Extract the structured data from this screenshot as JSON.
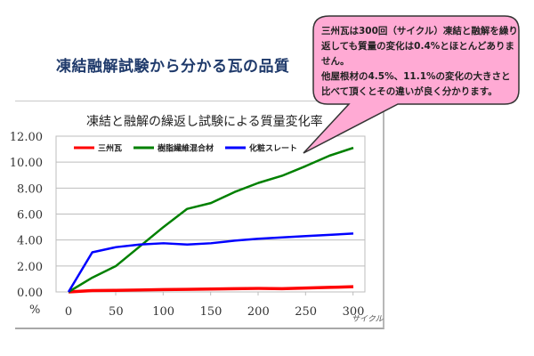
{
  "page": {
    "title": "凍結融解試験から分かる瓦の品質"
  },
  "callout": {
    "text": "三州瓦は300回（サイクル）凍結と融解を繰り返しても質量の変化は0.4%とほとんどありません。\n他屋根材の4.5%、11.1%の変化の大きさと比べて頂くとその違いが良く分かります。",
    "fill": "#ffaad4",
    "border": "#333333"
  },
  "chart_data": {
    "type": "line",
    "title": "凍結と融解の繰返し試験による質量変化率",
    "xlabel": "サイクル",
    "ylabel": "%",
    "x": [
      0,
      25,
      50,
      75,
      100,
      125,
      150,
      175,
      200,
      225,
      250,
      275,
      300
    ],
    "x_tick_labels": [
      "0",
      "50",
      "100",
      "150",
      "200",
      "250",
      "300"
    ],
    "y_tick_labels": [
      "0.00",
      "2.00",
      "4.00",
      "6.00",
      "8.00",
      "10.00",
      "12.00"
    ],
    "ylim": [
      0,
      12
    ],
    "xlim": [
      0,
      300
    ],
    "grid": true,
    "legend_position": "top-inside",
    "series": [
      {
        "name": "三州瓦",
        "color": "#ff0000",
        "values": [
          0,
          0.1,
          0.12,
          0.15,
          0.18,
          0.2,
          0.22,
          0.25,
          0.27,
          0.25,
          0.3,
          0.35,
          0.4
        ]
      },
      {
        "name": "樹脂繊維混合材",
        "color": "#008000",
        "values": [
          0,
          1.1,
          2.0,
          3.5,
          5.0,
          6.4,
          6.85,
          7.7,
          8.4,
          8.95,
          9.7,
          10.5,
          11.1
        ]
      },
      {
        "name": "化粧スレート",
        "color": "#0000ff",
        "values": [
          0,
          3.05,
          3.45,
          3.65,
          3.75,
          3.65,
          3.75,
          3.95,
          4.1,
          4.2,
          4.3,
          4.4,
          4.5
        ]
      }
    ]
  }
}
